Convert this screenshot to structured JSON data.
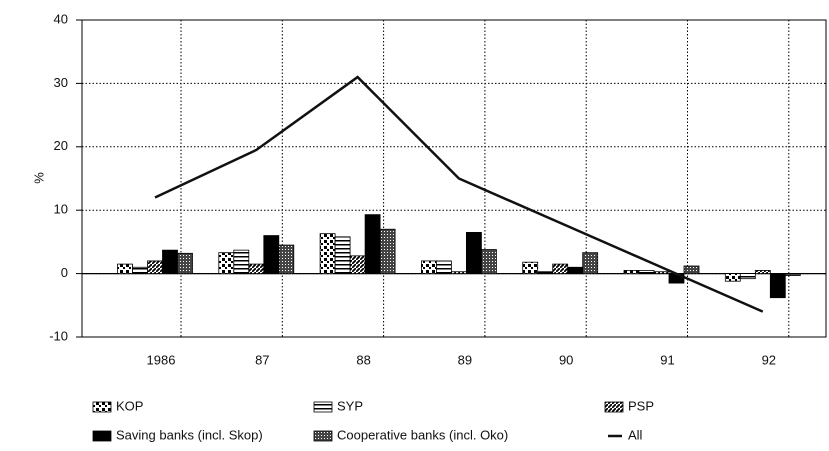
{
  "chart_data": {
    "type": "bar",
    "y_label": "%",
    "categories": [
      "1986",
      "87",
      "88",
      "89",
      "90",
      "91",
      "92"
    ],
    "series": [
      {
        "name": "KOP",
        "color": "#000000",
        "values": [
          1.5,
          3.3,
          6.3,
          2,
          1.8,
          0.5,
          -1.2
        ]
      },
      {
        "name": "SYP",
        "color": "#000000",
        "values": [
          1,
          3.7,
          5.8,
          2,
          0.3,
          0.5,
          -0.8
        ]
      },
      {
        "name": "PSP",
        "color": "#000000",
        "values": [
          2,
          1.5,
          2.8,
          0.3,
          1.5,
          0.3,
          0.5
        ]
      },
      {
        "name": "Saving banks (incl. Skop)",
        "color": "#000000",
        "values": [
          3.7,
          6,
          9.3,
          6.5,
          1,
          -1.5,
          -3.8
        ]
      },
      {
        "name": "Cooperative banks (incl. Oko)",
        "color": "#000000",
        "values": [
          3.2,
          4.5,
          7,
          3.8,
          3.3,
          1.2,
          -0.3
        ]
      }
    ],
    "line": {
      "name": "All",
      "color": "#111111",
      "values": [
        12,
        19.5,
        31,
        15,
        8,
        1,
        -6
      ]
    },
    "ylim": [
      -10,
      40
    ],
    "yticks": [
      -10,
      0,
      10,
      20,
      30,
      40
    ],
    "grid": true
  }
}
